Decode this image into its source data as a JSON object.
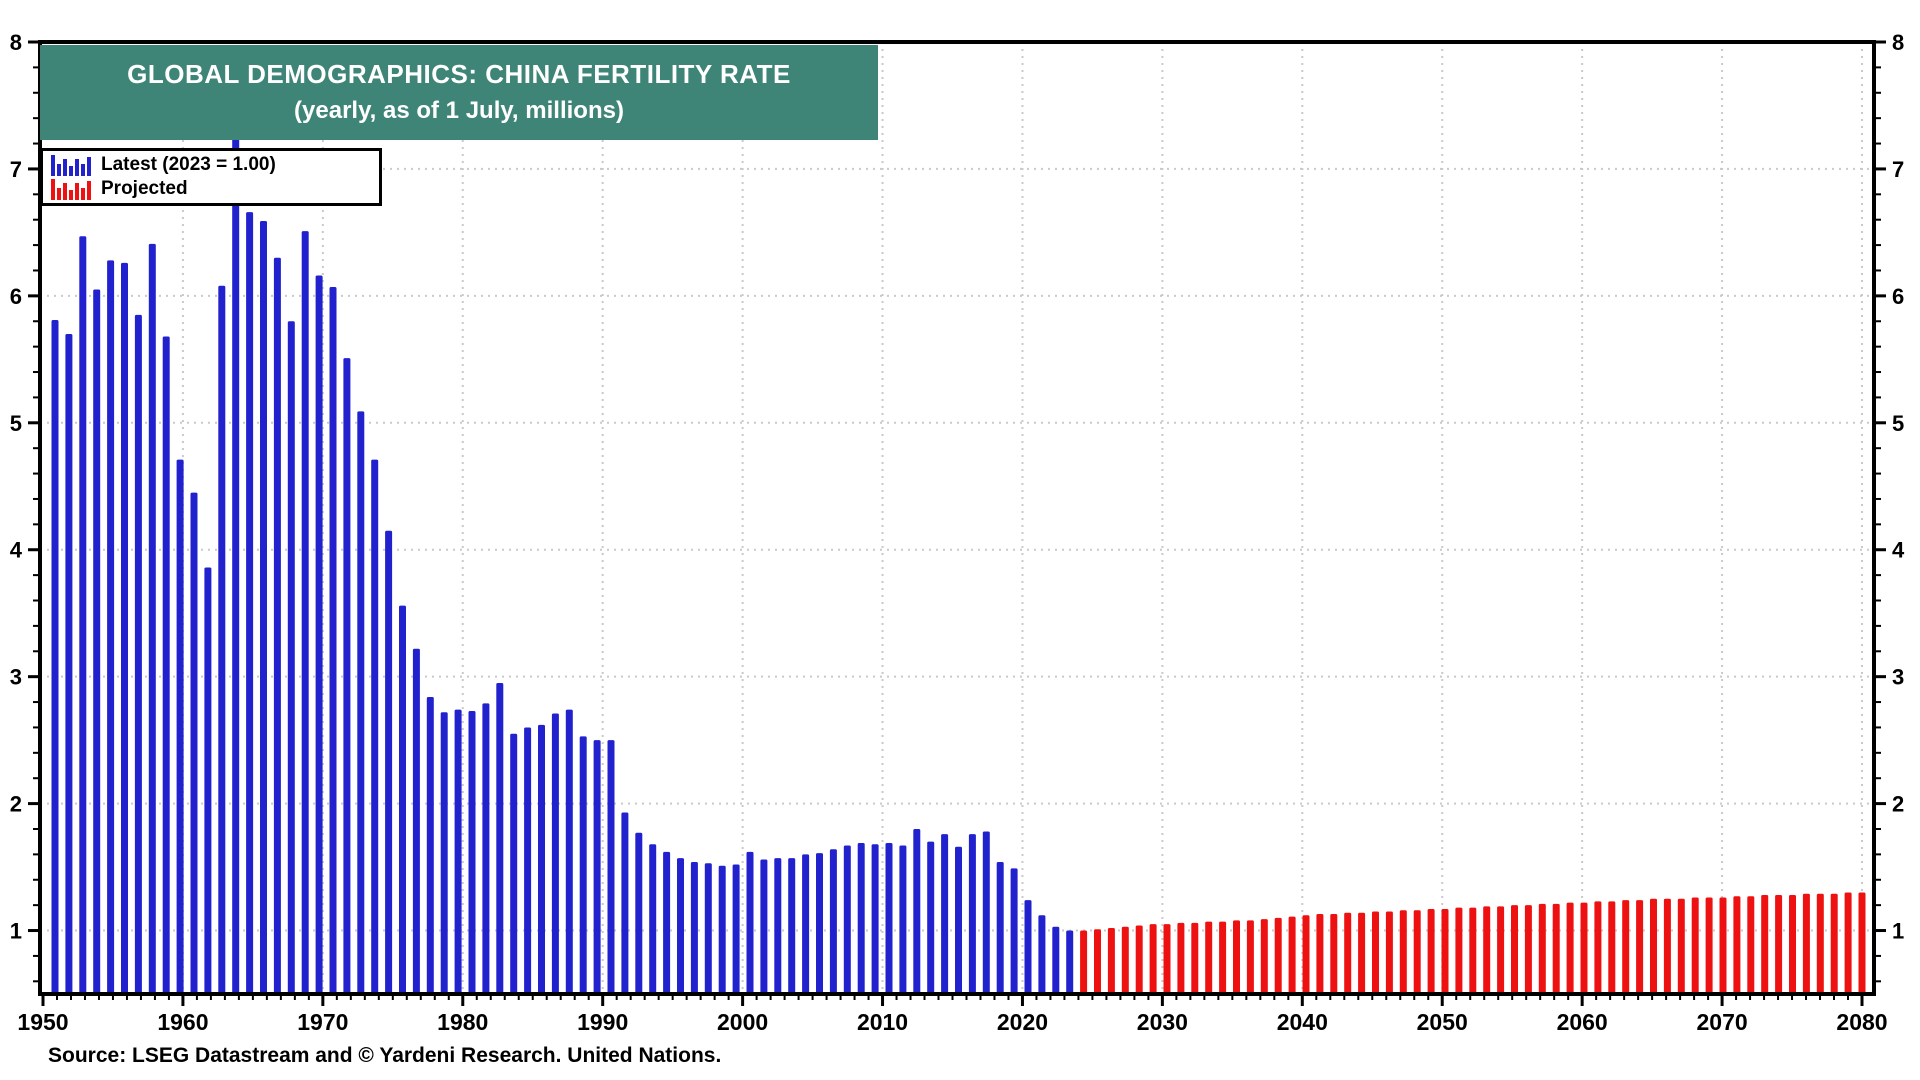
{
  "title": {
    "line1": "GLOBAL DEMOGRAPHICS: CHINA FERTILITY RATE",
    "line2": "(yearly, as of 1 July, millions)"
  },
  "legend": {
    "items": [
      {
        "label": "Latest (2023 = 1.00)",
        "color": "#2121CE"
      },
      {
        "label": "Projected",
        "color": "#EE1111"
      }
    ]
  },
  "source_note": "Source: LSEG Datastream and © Yardeni Research. United Nations.",
  "colors": {
    "banner": "#3E8577",
    "latest": "#2121CE",
    "projected": "#EE1111",
    "grid": "#C9C9C9",
    "axis": "#000000"
  },
  "chart_data": {
    "type": "bar",
    "title": "GLOBAL DEMOGRAPHICS: CHINA FERTILITY RATE",
    "subtitle": "(yearly, as of 1 July, millions)",
    "xlabel": "",
    "ylabel": "",
    "x_axis": {
      "major_ticks": [
        1950,
        1960,
        1970,
        1980,
        1990,
        2000,
        2010,
        2020,
        2030,
        2040,
        2050,
        2060,
        2070,
        2080
      ],
      "minor_step_years": 1,
      "range": [
        1950,
        2080
      ]
    },
    "y_axis": {
      "major_ticks": [
        1,
        2,
        3,
        4,
        5,
        6,
        7,
        8
      ],
      "minor_step": 0.2,
      "range": [
        0.5,
        8
      ],
      "gridline_values": [
        1,
        2,
        3,
        4,
        5,
        6,
        7
      ],
      "sides": "both"
    },
    "grid": "dotted",
    "legend_position": "top-left",
    "series": [
      {
        "name": "Latest (2023 = 1.00)",
        "color": "#2121CE",
        "start_year": 1950,
        "values": [
          5.81,
          5.7,
          6.47,
          6.05,
          6.28,
          6.26,
          5.85,
          6.41,
          5.68,
          4.71,
          4.45,
          3.86,
          6.08,
          7.51,
          6.66,
          6.59,
          6.3,
          5.8,
          6.51,
          6.16,
          6.07,
          5.51,
          5.09,
          4.71,
          4.15,
          3.56,
          3.22,
          2.84,
          2.72,
          2.74,
          2.73,
          2.79,
          2.95,
          2.55,
          2.6,
          2.62,
          2.71,
          2.74,
          2.53,
          2.5,
          2.5,
          1.93,
          1.77,
          1.68,
          1.62,
          1.57,
          1.54,
          1.53,
          1.51,
          1.52,
          1.62,
          1.56,
          1.57,
          1.57,
          1.6,
          1.61,
          1.64,
          1.67,
          1.69,
          1.68,
          1.69,
          1.67,
          1.8,
          1.7,
          1.76,
          1.66,
          1.76,
          1.78,
          1.54,
          1.49,
          1.24,
          1.12,
          1.03,
          1.0
        ]
      },
      {
        "name": "Projected",
        "color": "#EE1111",
        "start_year": 2024,
        "values": [
          1.0,
          1.01,
          1.02,
          1.03,
          1.04,
          1.05,
          1.05,
          1.06,
          1.06,
          1.07,
          1.07,
          1.08,
          1.08,
          1.09,
          1.1,
          1.11,
          1.12,
          1.13,
          1.13,
          1.14,
          1.14,
          1.15,
          1.15,
          1.16,
          1.16,
          1.17,
          1.17,
          1.18,
          1.18,
          1.19,
          1.19,
          1.2,
          1.2,
          1.21,
          1.21,
          1.22,
          1.22,
          1.23,
          1.23,
          1.24,
          1.24,
          1.25,
          1.25,
          1.25,
          1.26,
          1.26,
          1.26,
          1.27,
          1.27,
          1.28,
          1.28,
          1.28,
          1.29,
          1.29,
          1.29,
          1.3,
          1.3
        ]
      }
    ]
  }
}
